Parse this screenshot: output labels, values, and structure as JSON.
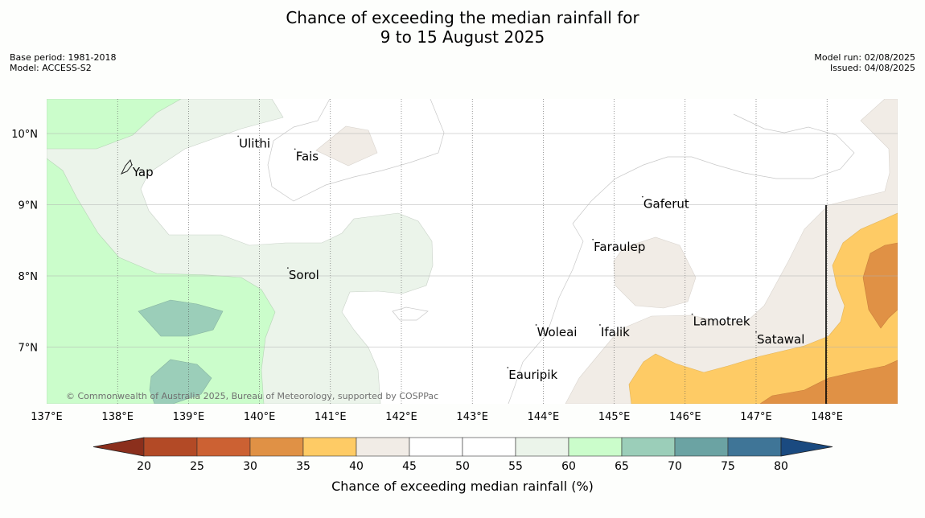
{
  "title_line1": "Chance of exceeding the median rainfall for",
  "title_line2": "9 to 15 August 2025",
  "meta_left": [
    "Base period: 1981-2018",
    "Model: ACCESS-S2"
  ],
  "meta_right": [
    "Model run: 02/08/2025",
    "Issued: 04/08/2025"
  ],
  "map": {
    "lon_labels": [
      "137°E",
      "138°E",
      "139°E",
      "140°E",
      "141°E",
      "142°E",
      "143°E",
      "144°E",
      "145°E",
      "146°E",
      "147°E",
      "148°E"
    ],
    "lat_labels": [
      "10°N",
      "9°N",
      "8°N",
      "7°N"
    ],
    "places": [
      "Ulithi",
      "Fais",
      "Yap",
      "Gaferut",
      "Faraulep",
      "Sorol",
      "Lamotrek",
      "Woleai",
      "Ifalik",
      "Satawal",
      "Eauripik"
    ],
    "copyright": "© Commonwealth of Australia 2025, Bureau of Meteorology, supported by COSPPac"
  },
  "colorbar": {
    "ticks": [
      "20",
      "25",
      "30",
      "35",
      "40",
      "45",
      "50",
      "55",
      "60",
      "65",
      "70",
      "75",
      "80"
    ],
    "colors": [
      "#b34a26",
      "#cc6133",
      "#e09145",
      "#fecb65",
      "#f1ece6",
      "#ffffff",
      "#ffffff",
      "#ebf4ea",
      "#cbfdcb",
      "#9bceb9",
      "#6ba3a3",
      "#3f7597"
    ],
    "low_color": "#8b2f1c",
    "high_color": "#1a4a80",
    "label": "Chance of exceeding median rainfall (%)"
  }
}
